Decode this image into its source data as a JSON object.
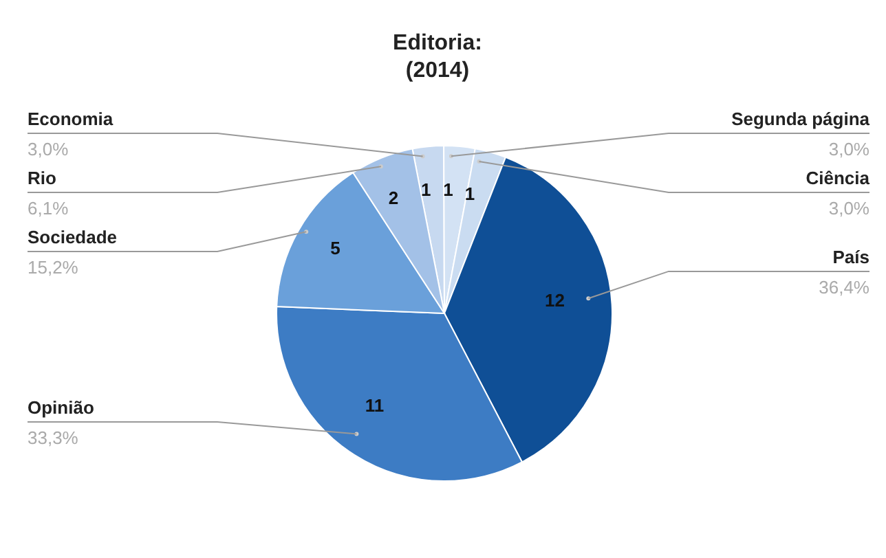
{
  "chart_data": {
    "type": "pie",
    "title": "Editoria:\n(2014)",
    "categories": [
      "Economia",
      "Segunda página",
      "Ciência",
      "País",
      "Opinião",
      "Sociedade",
      "Rio"
    ],
    "values": [
      3.0,
      3.0,
      3.0,
      36.4,
      33.3,
      15.2,
      6.1
    ],
    "colors": [
      "#c7d9f0",
      "#d3e2f4",
      "#cadcf1",
      "#0f4f96",
      "#3d7cc4",
      "#6aa0da",
      "#a3c1e7"
    ],
    "annotations": [
      {
        "text": "1",
        "x": "Economia"
      },
      {
        "text": "1",
        "x": "Segunda página"
      },
      {
        "text": "1",
        "x": "Ciência"
      },
      {
        "text": "12",
        "x": "País"
      },
      {
        "text": "11",
        "x": "Opinião"
      },
      {
        "text": "5",
        "x": "Sociedade"
      },
      {
        "text": "2",
        "x": "Rio"
      }
    ],
    "value_labels": [
      "3,0%",
      "3,0%",
      "3,0%",
      "36,4%",
      "33,3%",
      "15,2%",
      "6,1%"
    ],
    "legend": false
  }
}
